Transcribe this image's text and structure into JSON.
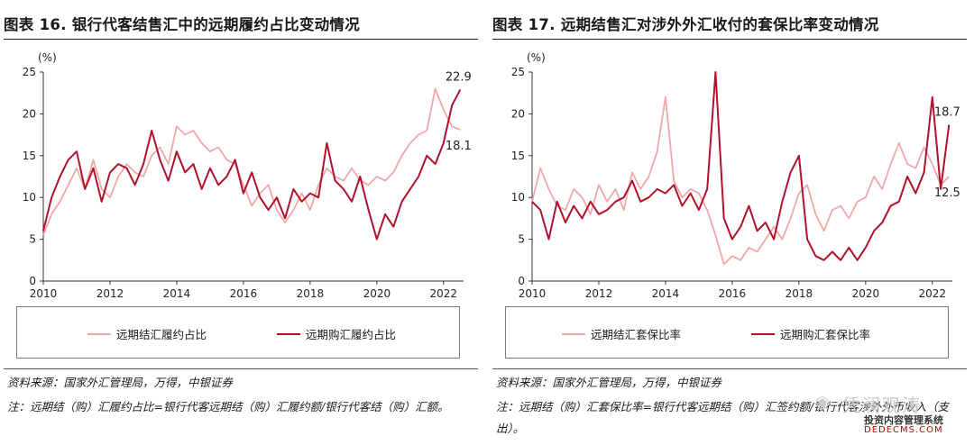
{
  "colors": {
    "light": "#F2A7A7",
    "dark": "#B0122C"
  },
  "charts": [
    {
      "title": "图表 16. 银行代客结售汇中的远期履约占比变动情况",
      "unit": "(%)",
      "legend": [
        "远期结汇履约占比",
        "远期购汇履约占比"
      ],
      "end_labels": {
        "dark": "22.9",
        "light": "18.1"
      },
      "source": "资料来源：国家外汇管理局，万得，中银证券",
      "note": "注：远期结（购）汇履约占比=银行代客远期结（购）汇履约额/银行代客结（购）汇额。"
    },
    {
      "title": "图表 17. 远期结售汇对涉外外汇收付的套保比率变动情况",
      "unit": "(%)",
      "legend": [
        "远期结汇套保比率",
        "远期购汇套保比率"
      ],
      "end_labels": {
        "dark": "18.7",
        "light": "12.5"
      },
      "source": "资料来源：国家外汇管理局，万得，中银证券",
      "note": "注：远期结（购）汇套保比率=银行代客远期结（购）汇签约额/银行代客涉外外币收入（支出）。"
    }
  ],
  "watermark": {
    "name": "凭澜观涛",
    "sub": "投资内容管理系统",
    "url": "DEDECMS.COM"
  },
  "chart_data": [
    {
      "type": "line",
      "title": "图表 16. 银行代客结售汇中的远期履约占比变动情况",
      "xlabel": "",
      "ylabel": "(%)",
      "ylim": [
        0,
        25
      ],
      "xlim": [
        2010,
        2022.6
      ],
      "y_ticks": [
        0,
        5,
        10,
        15,
        20,
        25
      ],
      "x_ticks": [
        "2010",
        "2012",
        "2014",
        "2016",
        "2018",
        "2020",
        "2022"
      ],
      "grid": false,
      "legend": "bottom",
      "series": [
        {
          "name": "远期结汇履约占比",
          "points": [
            [
              2010.0,
              5.5
            ],
            [
              2010.25,
              8.0
            ],
            [
              2010.5,
              9.5
            ],
            [
              2010.75,
              11.5
            ],
            [
              2011.0,
              13.5
            ],
            [
              2011.25,
              11.0
            ],
            [
              2011.5,
              14.5
            ],
            [
              2011.75,
              11.0
            ],
            [
              2012.0,
              10.0
            ],
            [
              2012.25,
              12.5
            ],
            [
              2012.5,
              14.0
            ],
            [
              2012.75,
              13.0
            ],
            [
              2013.0,
              12.5
            ],
            [
              2013.25,
              15.0
            ],
            [
              2013.5,
              16.0
            ],
            [
              2013.75,
              14.0
            ],
            [
              2014.0,
              18.5
            ],
            [
              2014.25,
              17.5
            ],
            [
              2014.5,
              18.0
            ],
            [
              2014.75,
              16.5
            ],
            [
              2015.0,
              15.5
            ],
            [
              2015.25,
              16.0
            ],
            [
              2015.5,
              14.5
            ],
            [
              2015.75,
              14.0
            ],
            [
              2016.0,
              11.5
            ],
            [
              2016.25,
              9.0
            ],
            [
              2016.5,
              10.5
            ],
            [
              2016.75,
              11.5
            ],
            [
              2017.0,
              8.5
            ],
            [
              2017.25,
              7.0
            ],
            [
              2017.5,
              8.5
            ],
            [
              2017.75,
              10.5
            ],
            [
              2018.0,
              8.5
            ],
            [
              2018.25,
              11.5
            ],
            [
              2018.5,
              13.5
            ],
            [
              2018.75,
              12.5
            ],
            [
              2019.0,
              12.0
            ],
            [
              2019.25,
              13.5
            ],
            [
              2019.5,
              12.0
            ],
            [
              2019.75,
              11.5
            ],
            [
              2020.0,
              12.5
            ],
            [
              2020.25,
              12.0
            ],
            [
              2020.5,
              13.0
            ],
            [
              2020.75,
              15.0
            ],
            [
              2021.0,
              16.5
            ],
            [
              2021.25,
              17.5
            ],
            [
              2021.5,
              18.0
            ],
            [
              2021.75,
              23.0
            ],
            [
              2022.0,
              20.5
            ],
            [
              2022.25,
              18.5
            ],
            [
              2022.5,
              18.1
            ]
          ]
        },
        {
          "name": "远期购汇履约占比",
          "points": [
            [
              2010.0,
              6.0
            ],
            [
              2010.25,
              10.0
            ],
            [
              2010.5,
              12.5
            ],
            [
              2010.75,
              14.5
            ],
            [
              2011.0,
              15.5
            ],
            [
              2011.25,
              11.0
            ],
            [
              2011.5,
              13.5
            ],
            [
              2011.75,
              9.5
            ],
            [
              2012.0,
              13.0
            ],
            [
              2012.25,
              14.0
            ],
            [
              2012.5,
              13.5
            ],
            [
              2012.75,
              11.5
            ],
            [
              2013.0,
              14.0
            ],
            [
              2013.25,
              18.0
            ],
            [
              2013.5,
              14.5
            ],
            [
              2013.75,
              12.0
            ],
            [
              2014.0,
              15.5
            ],
            [
              2014.25,
              13.0
            ],
            [
              2014.5,
              14.0
            ],
            [
              2014.75,
              11.0
            ],
            [
              2015.0,
              13.5
            ],
            [
              2015.25,
              11.5
            ],
            [
              2015.5,
              12.5
            ],
            [
              2015.75,
              14.5
            ],
            [
              2016.0,
              10.5
            ],
            [
              2016.25,
              13.0
            ],
            [
              2016.5,
              10.0
            ],
            [
              2016.75,
              8.5
            ],
            [
              2017.0,
              10.0
            ],
            [
              2017.25,
              7.5
            ],
            [
              2017.5,
              11.0
            ],
            [
              2017.75,
              9.5
            ],
            [
              2018.0,
              10.5
            ],
            [
              2018.25,
              10.0
            ],
            [
              2018.5,
              16.5
            ],
            [
              2018.75,
              12.0
            ],
            [
              2019.0,
              11.0
            ],
            [
              2019.25,
              9.5
            ],
            [
              2019.5,
              12.5
            ],
            [
              2019.75,
              8.5
            ],
            [
              2020.0,
              5.0
            ],
            [
              2020.25,
              8.0
            ],
            [
              2020.5,
              6.5
            ],
            [
              2020.75,
              9.5
            ],
            [
              2021.0,
              11.0
            ],
            [
              2021.25,
              12.5
            ],
            [
              2021.5,
              15.0
            ],
            [
              2021.75,
              14.0
            ],
            [
              2022.0,
              16.5
            ],
            [
              2022.25,
              21.0
            ],
            [
              2022.5,
              22.9
            ]
          ]
        }
      ]
    },
    {
      "type": "line",
      "title": "图表 17. 远期结售汇对涉外外汇收付的套保比率变动情况",
      "xlabel": "",
      "ylabel": "(%)",
      "ylim": [
        0,
        25
      ],
      "xlim": [
        2010,
        2022.6
      ],
      "y_ticks": [
        0,
        5,
        10,
        15,
        20,
        25
      ],
      "x_ticks": [
        "2010",
        "2012",
        "2014",
        "2016",
        "2018",
        "2020",
        "2022"
      ],
      "grid": false,
      "legend": "bottom",
      "series": [
        {
          "name": "远期结汇套保比率",
          "points": [
            [
              2010.0,
              9.5
            ],
            [
              2010.25,
              13.5
            ],
            [
              2010.5,
              11.0
            ],
            [
              2010.75,
              9.0
            ],
            [
              2011.0,
              8.5
            ],
            [
              2011.25,
              11.0
            ],
            [
              2011.5,
              10.0
            ],
            [
              2011.75,
              8.0
            ],
            [
              2012.0,
              11.5
            ],
            [
              2012.25,
              9.5
            ],
            [
              2012.5,
              11.0
            ],
            [
              2012.75,
              8.5
            ],
            [
              2013.0,
              13.0
            ],
            [
              2013.25,
              11.0
            ],
            [
              2013.5,
              12.5
            ],
            [
              2013.75,
              15.5
            ],
            [
              2014.0,
              22.0
            ],
            [
              2014.25,
              12.0
            ],
            [
              2014.5,
              10.0
            ],
            [
              2014.75,
              11.0
            ],
            [
              2015.0,
              10.5
            ],
            [
              2015.25,
              8.5
            ],
            [
              2015.5,
              5.5
            ],
            [
              2015.75,
              2.0
            ],
            [
              2016.0,
              3.0
            ],
            [
              2016.25,
              2.5
            ],
            [
              2016.5,
              4.0
            ],
            [
              2016.75,
              3.5
            ],
            [
              2017.0,
              5.0
            ],
            [
              2017.25,
              6.5
            ],
            [
              2017.5,
              5.0
            ],
            [
              2017.75,
              7.5
            ],
            [
              2018.0,
              10.5
            ],
            [
              2018.25,
              11.5
            ],
            [
              2018.5,
              8.0
            ],
            [
              2018.75,
              6.0
            ],
            [
              2019.0,
              8.5
            ],
            [
              2019.25,
              9.0
            ],
            [
              2019.5,
              7.5
            ],
            [
              2019.75,
              9.5
            ],
            [
              2020.0,
              10.0
            ],
            [
              2020.25,
              12.5
            ],
            [
              2020.5,
              11.0
            ],
            [
              2020.75,
              14.0
            ],
            [
              2021.0,
              16.5
            ],
            [
              2021.25,
              14.0
            ],
            [
              2021.5,
              13.5
            ],
            [
              2021.75,
              16.0
            ],
            [
              2022.0,
              14.0
            ],
            [
              2022.25,
              11.5
            ],
            [
              2022.5,
              12.5
            ]
          ]
        },
        {
          "name": "远期购汇套保比率",
          "points": [
            [
              2010.0,
              9.5
            ],
            [
              2010.25,
              8.5
            ],
            [
              2010.5,
              5.0
            ],
            [
              2010.75,
              9.5
            ],
            [
              2011.0,
              7.0
            ],
            [
              2011.25,
              9.0
            ],
            [
              2011.5,
              7.5
            ],
            [
              2011.75,
              9.5
            ],
            [
              2012.0,
              8.0
            ],
            [
              2012.25,
              8.5
            ],
            [
              2012.5,
              9.5
            ],
            [
              2012.75,
              10.0
            ],
            [
              2013.0,
              12.0
            ],
            [
              2013.25,
              9.5
            ],
            [
              2013.5,
              10.0
            ],
            [
              2013.75,
              11.0
            ],
            [
              2014.0,
              10.5
            ],
            [
              2014.25,
              11.5
            ],
            [
              2014.5,
              9.0
            ],
            [
              2014.75,
              10.5
            ],
            [
              2015.0,
              8.5
            ],
            [
              2015.25,
              11.0
            ],
            [
              2015.5,
              25.0
            ],
            [
              2015.75,
              7.5
            ],
            [
              2016.0,
              5.0
            ],
            [
              2016.25,
              6.5
            ],
            [
              2016.5,
              9.0
            ],
            [
              2016.75,
              6.0
            ],
            [
              2017.0,
              7.0
            ],
            [
              2017.25,
              5.0
            ],
            [
              2017.5,
              9.5
            ],
            [
              2017.75,
              13.0
            ],
            [
              2018.0,
              15.0
            ],
            [
              2018.25,
              5.0
            ],
            [
              2018.5,
              3.0
            ],
            [
              2018.75,
              2.5
            ],
            [
              2019.0,
              3.5
            ],
            [
              2019.25,
              2.5
            ],
            [
              2019.5,
              4.0
            ],
            [
              2019.75,
              2.5
            ],
            [
              2020.0,
              4.0
            ],
            [
              2020.25,
              6.0
            ],
            [
              2020.5,
              7.0
            ],
            [
              2020.75,
              9.0
            ],
            [
              2021.0,
              9.5
            ],
            [
              2021.25,
              12.5
            ],
            [
              2021.5,
              10.5
            ],
            [
              2021.75,
              13.0
            ],
            [
              2022.0,
              22.0
            ],
            [
              2022.25,
              11.0
            ],
            [
              2022.5,
              18.7
            ]
          ]
        }
      ]
    }
  ]
}
